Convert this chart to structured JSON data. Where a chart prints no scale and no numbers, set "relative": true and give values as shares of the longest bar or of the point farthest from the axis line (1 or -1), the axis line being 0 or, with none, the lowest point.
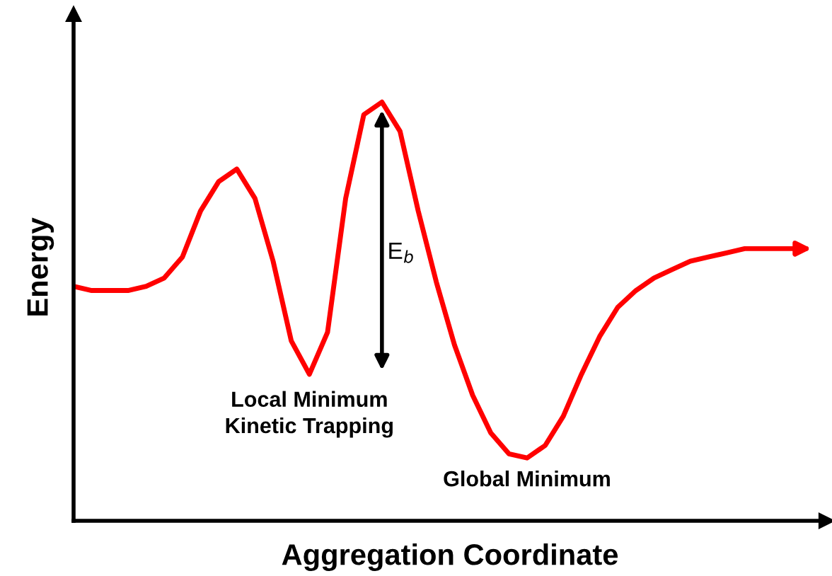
{
  "chart_data": {
    "type": "line",
    "relative": true,
    "xlabel": "Aggregation Coordinate",
    "ylabel": "Energy",
    "categories": [
      null,
      null,
      null,
      null,
      null,
      null,
      null,
      null,
      null,
      null,
      null,
      null,
      null,
      null,
      null,
      null,
      null,
      null,
      null,
      null,
      null,
      null,
      null,
      null,
      null,
      null,
      null,
      null,
      null,
      null,
      null,
      null,
      null,
      null,
      null,
      null,
      null,
      null,
      null,
      null,
      null
    ],
    "series": [
      {
        "color": "#ff0000",
        "values": [
          0.56,
          0.55,
          0.55,
          0.55,
          0.56,
          0.58,
          0.63,
          0.74,
          0.81,
          0.84,
          0.77,
          0.62,
          0.43,
          0.35,
          0.45,
          0.77,
          0.97,
          1,
          0.93,
          0.74,
          0.57,
          0.42,
          0.3,
          0.21,
          0.16,
          0.15,
          0.18,
          0.25,
          0.35,
          0.44,
          0.51,
          0.55,
          0.58,
          0.6,
          0.62,
          0.63,
          0.64,
          0.65,
          0.65,
          0.65,
          0.65
        ]
      }
    ],
    "annotations": [
      "E$_{b}$",
      "Local Minimum\nKinetic Trapping",
      "Global Minimum"
    ],
    "grid": false,
    "legend": false,
    "marker": "none",
    "line_style": "solid"
  }
}
